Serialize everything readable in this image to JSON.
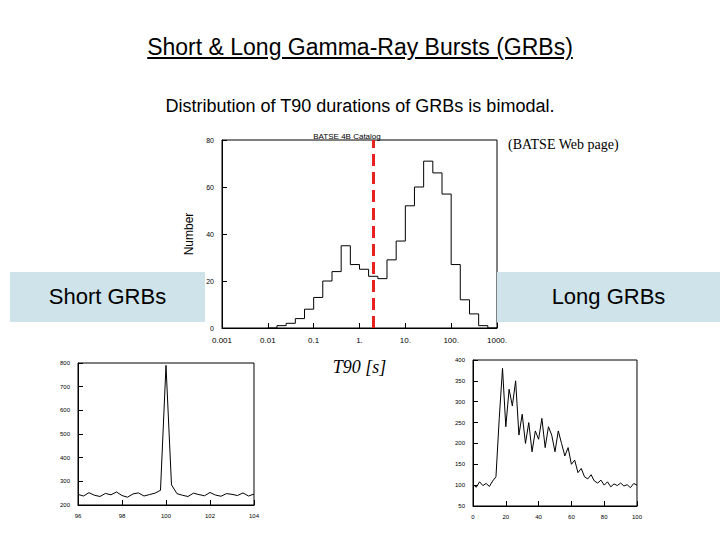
{
  "slide": {
    "title": "Short & Long Gamma-Ray Bursts (GRBs)",
    "subtitle": "Distribution of T90 durations of GRBs is bimodal.",
    "source": "(BATSE Web page)",
    "labels": [
      "Short GRBs",
      "Long GRBs"
    ]
  },
  "chart_data": [
    {
      "type": "histogram",
      "title": "BATSE 4B Catalog",
      "x_label": "T90 [s]",
      "y_label": "Number",
      "bins": [
        0.01,
        0.0158,
        0.0251,
        0.0398,
        0.0631,
        0.1,
        0.158,
        0.251,
        0.398,
        0.631,
        1,
        1.58,
        2.51,
        3.98,
        6.31,
        10,
        15.8,
        25.1,
        39.8,
        63.1,
        100,
        158,
        251,
        398,
        631,
        1000
      ],
      "counts": [
        0,
        1,
        2,
        4,
        8,
        13,
        20,
        24,
        35,
        27,
        25,
        22,
        21,
        29,
        37,
        52,
        60,
        71,
        66,
        57,
        27,
        12,
        6,
        1,
        0
      ],
      "color": "#000000",
      "log": "x",
      "xlim": [
        0.001,
        1000
      ],
      "xticks": [
        0.001,
        0.01,
        0.1,
        {
          "value": 1,
          "label": "1."
        },
        {
          "value": 10,
          "label": "10."
        },
        {
          "value": 100,
          "label": "100."
        },
        {
          "value": 1000,
          "label": "1000."
        }
      ],
      "ylim": [
        0,
        80
      ],
      "yticks": [
        0,
        20,
        40,
        60,
        80
      ],
      "grid": false,
      "lines": [
        {
          "x": 2,
          "color": "#e8231f",
          "line_style": "dashed"
        }
      ]
    },
    {
      "type": "line",
      "x": [
        96,
        96.25,
        96.5,
        96.75,
        97,
        97.25,
        97.5,
        97.75,
        98,
        98.25,
        98.5,
        98.75,
        99,
        99.25,
        99.5,
        99.75,
        100,
        100.25,
        100.5,
        100.75,
        101,
        101.25,
        101.5,
        101.75,
        102,
        102.25,
        102.5,
        102.75,
        103,
        103.25,
        103.5,
        103.75,
        104
      ],
      "values": [
        245,
        238,
        252,
        241,
        236,
        249,
        243,
        255,
        240,
        233,
        247,
        251,
        238,
        244,
        250,
        262,
        790,
        285,
        248,
        241,
        236,
        250,
        244,
        239,
        253,
        242,
        237,
        248,
        245,
        240,
        251,
        238,
        246
      ],
      "color": "#000000",
      "xlim": [
        96,
        104
      ],
      "xticks": [
        96,
        98,
        100,
        102,
        104
      ],
      "ylim": [
        200,
        800
      ],
      "yticks": [
        200,
        300,
        400,
        500,
        600,
        700,
        800
      ],
      "grid": false
    },
    {
      "type": "line",
      "x": [
        0,
        2,
        4,
        6,
        8,
        10,
        12,
        14,
        16,
        18,
        20,
        22,
        24,
        26,
        28,
        30,
        32,
        34,
        36,
        38,
        40,
        42,
        44,
        46,
        48,
        50,
        52,
        54,
        56,
        58,
        60,
        62,
        64,
        66,
        68,
        70,
        72,
        74,
        76,
        78,
        80,
        82,
        84,
        86,
        88,
        90,
        92,
        94,
        96,
        98,
        100
      ],
      "values": [
        102,
        95,
        108,
        99,
        104,
        97,
        110,
        120,
        260,
        380,
        240,
        330,
        290,
        350,
        220,
        270,
        200,
        250,
        180,
        230,
        210,
        260,
        190,
        240,
        220,
        180,
        230,
        200,
        170,
        190,
        150,
        160,
        130,
        140,
        120,
        115,
        125,
        110,
        105,
        112,
        100,
        108,
        96,
        103,
        99,
        105,
        98,
        101,
        94,
        104,
        100
      ],
      "color": "#000000",
      "xlim": [
        0,
        100
      ],
      "xticks": [
        0,
        20,
        40,
        60,
        80,
        100
      ],
      "ylim": [
        50,
        400
      ],
      "yticks": [
        50,
        100,
        150,
        200,
        250,
        300,
        350,
        400
      ],
      "grid": false
    }
  ]
}
